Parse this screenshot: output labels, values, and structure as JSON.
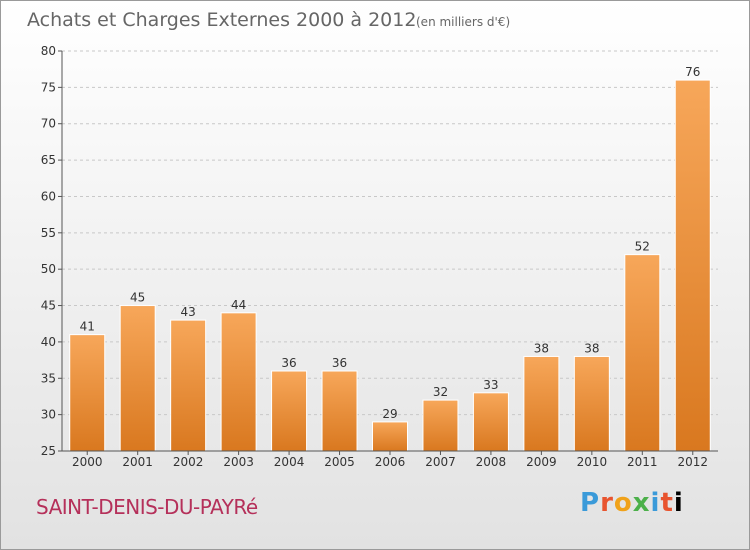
{
  "header": {
    "title": "Achats et Charges Externes 2000 à 2012",
    "subtitle": "(en milliers d'€)"
  },
  "footer": {
    "commune": "SAINT-DENIS-DU-PAYRé",
    "brand": [
      "P",
      "r",
      "o",
      "x",
      "i",
      "t",
      "i"
    ]
  },
  "colors": {
    "bar_light": "#f7a75a",
    "bar_dark": "#d9781f",
    "grid": "#c8c8c8"
  },
  "chart_data": {
    "type": "bar",
    "title": "Achats et Charges Externes 2000 à 2012",
    "subtitle": "(en milliers d'€)",
    "categories": [
      "2000",
      "2001",
      "2002",
      "2003",
      "2004",
      "2005",
      "2006",
      "2007",
      "2008",
      "2009",
      "2010",
      "2011",
      "2012"
    ],
    "values": [
      41,
      45,
      43,
      44,
      36,
      36,
      29,
      32,
      33,
      38,
      38,
      52,
      76
    ],
    "ylim": [
      25,
      80
    ],
    "yticks": [
      25,
      30,
      35,
      40,
      45,
      50,
      55,
      60,
      65,
      70,
      75,
      80
    ],
    "grid": true,
    "data_labels": true
  }
}
